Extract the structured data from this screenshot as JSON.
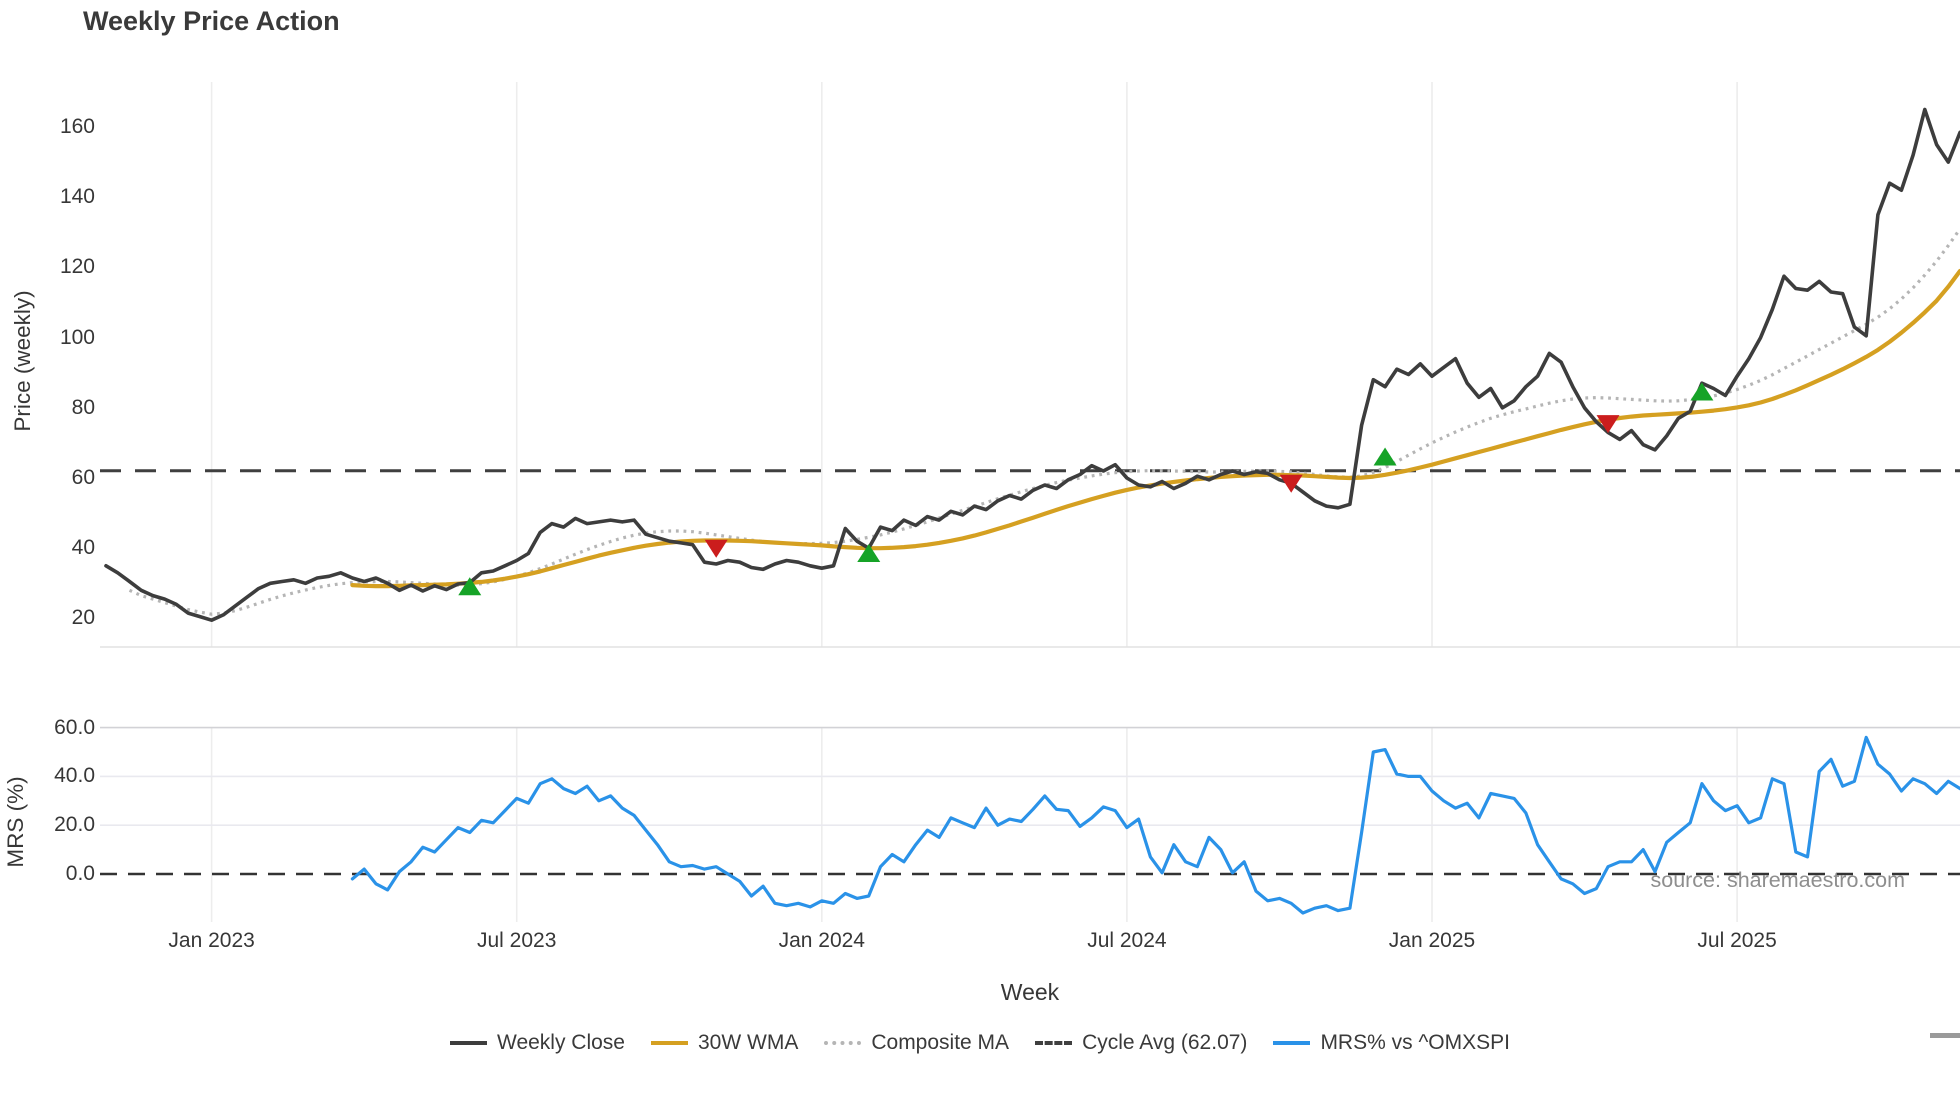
{
  "title": "Weekly Price Action",
  "source_note": "source: sharemaestro.com",
  "price_panel": {
    "ylabel": "Price (weekly)",
    "yticks": [
      {
        "v": 20,
        "label": "20"
      },
      {
        "v": 40,
        "label": "40"
      },
      {
        "v": 60,
        "label": "60"
      },
      {
        "v": 80,
        "label": "80"
      },
      {
        "v": 100,
        "label": "100"
      },
      {
        "v": 120,
        "label": "120"
      },
      {
        "v": 140,
        "label": "140"
      },
      {
        "v": 160,
        "label": "160"
      }
    ]
  },
  "mrs_panel": {
    "ylabel": "MRS (%)",
    "yticks": [
      {
        "v": 0,
        "label": "0.0"
      },
      {
        "v": 20,
        "label": "20.0"
      },
      {
        "v": 40,
        "label": "40.0"
      },
      {
        "v": 60,
        "label": "60.0"
      }
    ]
  },
  "x_axis": {
    "label": "Week",
    "ticks": [
      {
        "week": 9,
        "label": "Jan 2023"
      },
      {
        "week": 35,
        "label": "Jul 2023"
      },
      {
        "week": 61,
        "label": "Jan 2024"
      },
      {
        "week": 87,
        "label": "Jul 2024"
      },
      {
        "week": 113,
        "label": "Jan 2025"
      },
      {
        "week": 139,
        "label": "Jul 2025"
      }
    ]
  },
  "legend": [
    {
      "label": "Weekly Close",
      "color": "#3d3d3d",
      "dash": "solid"
    },
    {
      "label": "30W WMA",
      "color": "#d5a021",
      "dash": "solid"
    },
    {
      "label": "Composite MA",
      "color": "#b5b5b5",
      "dash": "dotted"
    },
    {
      "label": "Cycle Avg (62.07)",
      "color": "#3f3f3f",
      "dash": "dashed"
    },
    {
      "label": "MRS% vs ^OMXSPI",
      "color": "#2a92e8",
      "dash": "solid"
    }
  ],
  "colors": {
    "weekly_close": "#3d3d3d",
    "wma30": "#d5a021",
    "composite_ma": "#b5b5b5",
    "cycle_avg": "#3f3f3f",
    "mrs": "#2a92e8",
    "buy_marker": "#16a327",
    "sell_marker": "#cb1d1d",
    "gridline": "#ededed",
    "mrs_gridline_top": "#d2d2d6",
    "mrs_gridline": "#e9e9ef"
  },
  "chart_data": [
    {
      "type": "line",
      "panel": "price",
      "title": "Weekly Price Action",
      "xlabel": "Week",
      "ylabel": "Price (weekly)",
      "x_unit": "week_index_from_2022-11",
      "ylim": [
        12,
        173
      ],
      "grid": "vertical-only",
      "cycle_avg": 62.07,
      "series": [
        {
          "name": "Weekly Close",
          "color": "#3d3d3d",
          "style": "solid",
          "values": [
            35,
            33,
            30.5,
            28,
            26.5,
            25.5,
            24,
            21.5,
            20.5,
            19.5,
            21,
            23.5,
            26,
            28.5,
            30,
            30.5,
            31,
            30,
            31.5,
            32,
            33,
            31.5,
            30.5,
            31.5,
            30,
            28,
            29.5,
            27.8,
            29.3,
            28.2,
            29.8,
            30.2,
            33,
            33.5,
            35,
            36.5,
            38.5,
            44.5,
            47,
            46,
            48.5,
            47,
            47.5,
            48,
            47.5,
            48,
            44,
            43,
            42,
            41.5,
            41,
            36,
            35.5,
            36.5,
            36,
            34.5,
            34,
            35.5,
            36.5,
            36,
            35,
            34.3,
            35,
            45.6,
            42,
            40,
            46,
            45,
            48,
            46.5,
            49,
            48,
            50.5,
            49.5,
            52,
            51,
            53.5,
            55,
            54,
            56.5,
            58,
            57,
            59.5,
            61,
            63.5,
            62,
            63.8,
            60,
            58,
            57.5,
            59,
            57,
            58.5,
            60.5,
            59.5,
            61,
            62,
            61,
            61.8,
            61.3,
            59.5,
            58.5,
            56,
            53.5,
            52,
            51.5,
            52.5,
            75,
            88,
            86,
            91,
            89.5,
            92.5,
            89,
            91.5,
            94,
            87,
            83,
            85.5,
            80,
            82,
            86,
            89,
            95.5,
            93,
            86,
            80,
            76,
            73,
            71,
            73.5,
            69.5,
            68,
            72,
            77,
            79,
            87,
            85.5,
            83.5,
            89,
            94,
            100,
            108,
            117.5,
            114,
            113.5,
            116,
            113,
            112.5,
            103,
            100.5,
            135,
            144,
            142,
            152,
            165,
            155,
            150,
            158.5
          ]
        },
        {
          "name": "30W WMA",
          "color": "#d5a021",
          "style": "solid",
          "values": [
            null,
            null,
            null,
            null,
            null,
            null,
            null,
            null,
            null,
            null,
            null,
            null,
            null,
            null,
            null,
            null,
            null,
            null,
            null,
            null,
            null,
            29.5,
            29.3,
            29.2,
            29.2,
            29.3,
            29.4,
            29.5,
            29.6,
            29.7,
            29.9,
            30.1,
            30.4,
            30.8,
            31.3,
            31.9,
            32.6,
            33.4,
            34.3,
            35.2,
            36.1,
            37,
            37.9,
            38.7,
            39.4,
            40.1,
            40.7,
            41.2,
            41.6,
            41.9,
            42.1,
            42.2,
            42.2,
            42.2,
            42.1,
            42,
            41.8,
            41.6,
            41.4,
            41.2,
            41,
            40.8,
            40.5,
            40.3,
            40.1,
            40,
            40,
            40.1,
            40.3,
            40.6,
            41,
            41.5,
            42.1,
            42.8,
            43.6,
            44.5,
            45.5,
            46.5,
            47.6,
            48.7,
            49.8,
            50.9,
            52,
            53,
            54,
            54.9,
            55.8,
            56.6,
            57.3,
            57.9,
            58.4,
            58.9,
            59.3,
            59.7,
            60,
            60.3,
            60.5,
            60.7,
            60.8,
            60.9,
            60.9,
            60.8,
            60.7,
            60.5,
            60.3,
            60.1,
            60,
            60.1,
            60.4,
            60.9,
            61.5,
            62.2,
            63,
            63.8,
            64.7,
            65.6,
            66.5,
            67.4,
            68.3,
            69.2,
            70.1,
            71,
            71.9,
            72.8,
            73.7,
            74.5,
            75.3,
            76,
            76.6,
            77.1,
            77.5,
            77.8,
            78,
            78.2,
            78.4,
            78.6,
            78.9,
            79.2,
            79.6,
            80.1,
            80.7,
            81.5,
            82.5,
            83.7,
            85,
            86.4,
            87.9,
            89.4,
            91,
            92.7,
            94.5,
            96.5,
            98.8,
            101.4,
            104.2,
            107.2,
            110.5,
            114.5,
            119
          ]
        },
        {
          "name": "Composite MA",
          "color": "#b5b5b5",
          "style": "dotted",
          "values": [
            null,
            null,
            28,
            26.5,
            25.5,
            24.5,
            23.5,
            22.5,
            21.8,
            21.2,
            21.5,
            22.2,
            23.2,
            24.3,
            25.4,
            26.4,
            27.3,
            28.1,
            28.8,
            29.4,
            29.9,
            30.2,
            30.4,
            30.5,
            30.5,
            30.4,
            30.2,
            30,
            29.8,
            29.6,
            29.5,
            29.6,
            29.9,
            30.4,
            31.1,
            32,
            33,
            34.2,
            35.5,
            36.9,
            38.3,
            39.6,
            40.8,
            41.9,
            42.9,
            43.7,
            44.3,
            44.7,
            44.9,
            44.9,
            44.7,
            44.3,
            43.8,
            43.3,
            42.8,
            42.3,
            41.9,
            41.6,
            41.4,
            41.3,
            41.3,
            41.4,
            41.6,
            42,
            42.5,
            43.1,
            43.8,
            44.6,
            45.5,
            46.5,
            47.5,
            48.6,
            49.7,
            50.8,
            51.9,
            53,
            54.1,
            55.1,
            56.1,
            57,
            57.9,
            58.7,
            59.4,
            60,
            60.6,
            61.1,
            61.5,
            61.8,
            62,
            62.1,
            62.1,
            62,
            61.9,
            61.8,
            61.7,
            61.7,
            61.8,
            61.9,
            62,
            62,
            61.9,
            61.7,
            61.4,
            61,
            60.6,
            60.3,
            60.2,
            60.6,
            61.6,
            63,
            64.7,
            66.5,
            68.3,
            70,
            71.6,
            73.1,
            74.5,
            75.8,
            77,
            78,
            78.9,
            79.7,
            80.5,
            81.3,
            82,
            82.5,
            82.8,
            82.9,
            82.8,
            82.6,
            82.4,
            82.2,
            82,
            81.9,
            82,
            82.3,
            82.8,
            83.4,
            84.2,
            85.2,
            86.4,
            87.8,
            89.4,
            91.2,
            93,
            94.8,
            96.6,
            98.4,
            100.2,
            102,
            103.8,
            105.8,
            108.2,
            111,
            114.2,
            117.8,
            121.8,
            126.2,
            131
          ]
        }
      ],
      "markers": [
        {
          "week": 31,
          "value": 29,
          "type": "buy"
        },
        {
          "week": 52,
          "value": 40,
          "type": "sell"
        },
        {
          "week": 65,
          "value": 38.5,
          "type": "buy"
        },
        {
          "week": 101,
          "value": 58.5,
          "type": "sell"
        },
        {
          "week": 109,
          "value": 66,
          "type": "buy"
        },
        {
          "week": 128,
          "value": 75.5,
          "type": "sell"
        },
        {
          "week": 136,
          "value": 84.5,
          "type": "buy"
        }
      ]
    },
    {
      "type": "line",
      "panel": "mrs",
      "ylabel": "MRS (%)",
      "ylim": [
        -19.6,
        60
      ],
      "zero_line": 0,
      "grid": "both",
      "series": [
        {
          "name": "MRS% vs ^OMXSPI",
          "color": "#2a92e8",
          "style": "solid",
          "values": [
            null,
            null,
            null,
            null,
            null,
            null,
            null,
            null,
            null,
            null,
            null,
            null,
            null,
            null,
            null,
            null,
            null,
            null,
            null,
            null,
            null,
            -2,
            2,
            -4,
            -6.5,
            1,
            5,
            11,
            9,
            14,
            19,
            17,
            22,
            21,
            26,
            31,
            29,
            37,
            39,
            35,
            33,
            36,
            30,
            32,
            27,
            24,
            18,
            12,
            5,
            3,
            3.5,
            2,
            3,
            0,
            -3,
            -9,
            -5,
            -12,
            -13,
            -12,
            -13.5,
            -11,
            -12,
            -8,
            -10,
            -9,
            3,
            8,
            5,
            12,
            18,
            15,
            23,
            21,
            19,
            27,
            20,
            22.5,
            21.5,
            26.5,
            32,
            26.5,
            26,
            19.5,
            23,
            27.5,
            26,
            19,
            22.5,
            7,
            0.5,
            12,
            5,
            3,
            15,
            10,
            0.5,
            5,
            -7,
            -11,
            -10,
            -12,
            -16,
            -14,
            -13,
            -15,
            -14,
            17,
            50,
            51,
            41,
            40,
            40,
            34,
            30,
            27,
            29,
            23,
            33,
            32,
            31,
            25,
            12,
            5,
            -2,
            -4,
            -8,
            -6,
            3,
            5,
            5,
            10,
            1,
            13,
            17,
            21,
            37,
            30,
            26,
            28,
            21,
            23,
            39,
            37,
            9,
            7,
            42,
            47,
            36,
            38,
            56,
            45,
            41,
            34,
            39,
            37,
            33,
            38,
            35
          ]
        }
      ]
    }
  ]
}
